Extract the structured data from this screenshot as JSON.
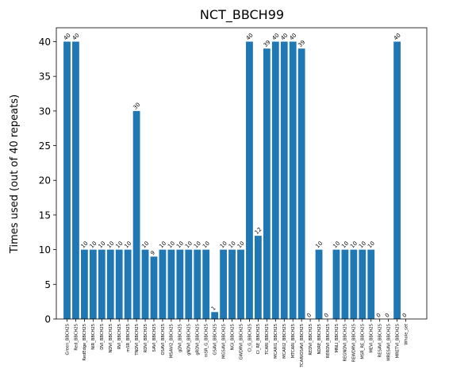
{
  "chart_data": {
    "type": "bar",
    "title": "NCT_BBCH99",
    "xlabel": "",
    "ylabel": "Times used (out of 40 repeats)",
    "ylim": [
      0,
      42
    ],
    "yticks": [
      0,
      5,
      10,
      15,
      20,
      25,
      30,
      35,
      40
    ],
    "grid": false,
    "legend": "none",
    "bar_color": "#1f77b4",
    "categories": [
      "Green_BBCH25",
      "Red_BBCH25",
      "RedEdge_BBCH25",
      "NIR_BBCH25",
      "DVI_BBCH25",
      "NDVI_BBCH25",
      "RVI_BBCH25",
      "mSR_BBCH25",
      "TNDVI_BBCH25",
      "RDVI_BBCH25",
      "SAVI_BBCH25",
      "OSAVI_BBCH25",
      "MSAVI2_BBCH25",
      "gDVI_BBCH25",
      "gNDVI_BBCH25",
      "gRDVI_BBCH25",
      "mSR_G_BBCH25",
      "GSAVI_BBCH25",
      "MGSAVI_BBCH25",
      "NGI_BBCH25",
      "GWDRVI_BBCH25",
      "CI_G_BBCH25",
      "CI_RE_BBCH25",
      "TCARI_BBCH25",
      "MCARI1_BBCH25",
      "MCARI2_BBCH25",
      "MTCARI_BBCH25",
      "TCARIOSAVI_BBCH25",
      "REDVI_BBCH25",
      "NDRE_BBCH25",
      "RERDVI_BBCH25",
      "MNLI_BBCH25",
      "REGNDVI_BBCH25",
      "REWDRVI_BBCH25",
      "MSR_RE_BBCH25",
      "MEVI_BBCH25",
      "RESAVI_BBCH25",
      "MRESAVI_BBCH25",
      "MRETVI_BBCH25",
      "Whole_set"
    ],
    "values": [
      40,
      40,
      10,
      10,
      10,
      10,
      10,
      10,
      30,
      10,
      9,
      10,
      10,
      10,
      10,
      10,
      10,
      1,
      10,
      10,
      10,
      40,
      12,
      39,
      40,
      40,
      40,
      39,
      0,
      10,
      0,
      10,
      10,
      10,
      10,
      10,
      0,
      0,
      40,
      0
    ],
    "data_labels": [
      "40",
      "40",
      "10",
      "10",
      "10",
      "10",
      "10",
      "10",
      "30",
      "10",
      "9",
      "10",
      "10",
      "10",
      "10",
      "10",
      "10",
      "1",
      "10",
      "10",
      "10",
      "40",
      "12",
      "39",
      "40",
      "40",
      "40",
      "39",
      "0",
      "10",
      "0",
      "10",
      "10",
      "10",
      "10",
      "10",
      "0",
      "0",
      "40",
      "0"
    ]
  }
}
